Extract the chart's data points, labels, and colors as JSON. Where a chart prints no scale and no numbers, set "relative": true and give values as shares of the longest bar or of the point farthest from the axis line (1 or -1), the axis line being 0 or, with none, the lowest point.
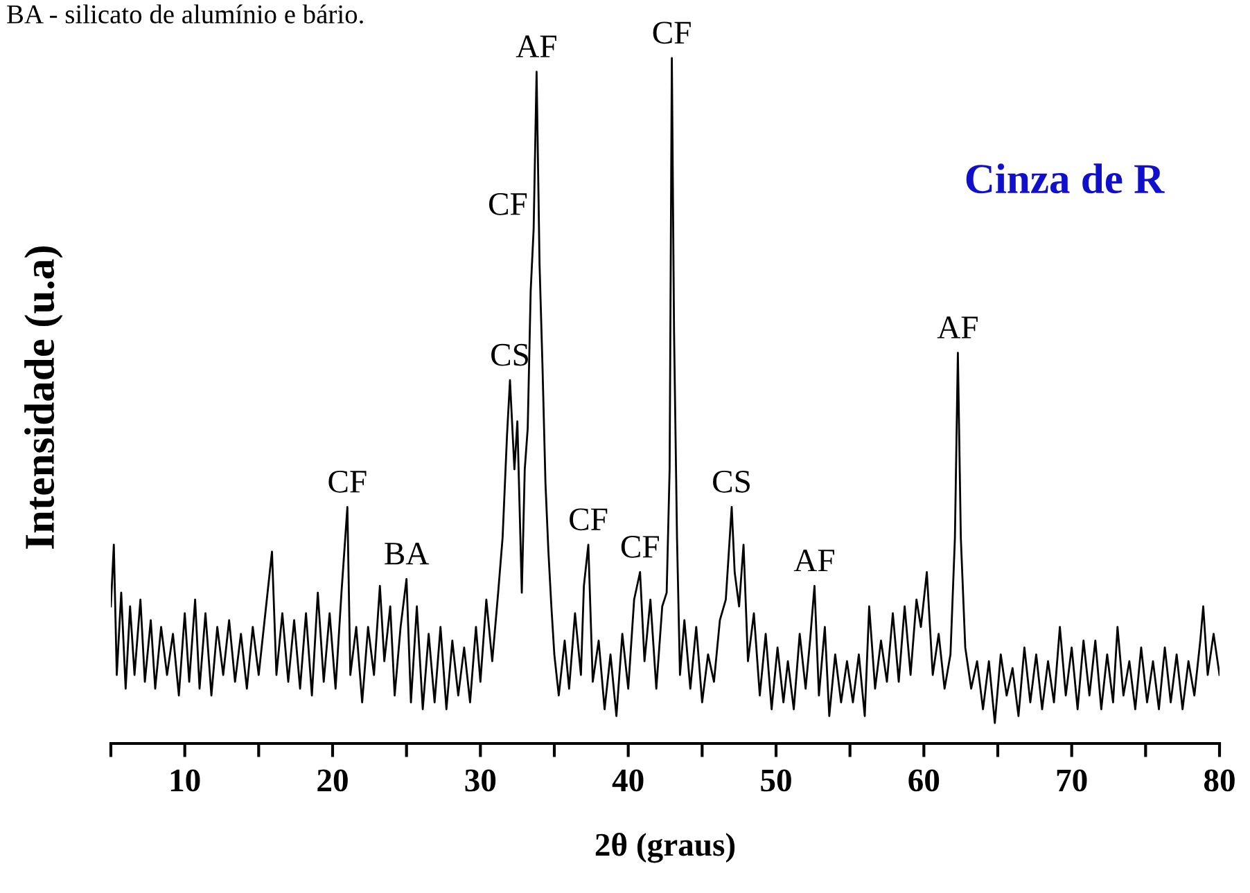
{
  "chart_data": {
    "type": "line",
    "relative": true,
    "xlabel": "2θ (graus)",
    "ylabel": "Intensidade (u.a)",
    "xlim": [
      5,
      80
    ],
    "xticks": [
      {
        "value": 5,
        "label": null
      },
      10,
      {
        "value": 15,
        "label": null
      },
      20,
      {
        "value": 25,
        "label": null
      },
      30,
      {
        "value": 35,
        "label": null
      },
      40,
      {
        "value": 45,
        "label": null
      },
      50,
      {
        "value": 55,
        "label": null
      },
      60,
      {
        "value": 65,
        "label": null
      },
      70,
      {
        "value": 75,
        "label": null
      },
      80
    ],
    "tick_labels": "x",
    "grid": false,
    "legend": false,
    "marker": "none",
    "line_style": "solid",
    "series": [
      {
        "color": "#000000",
        "x": [
          5.0,
          5.2,
          5.4,
          5.7,
          6.0,
          6.3,
          6.6,
          7.0,
          7.3,
          7.7,
          8.0,
          8.4,
          8.8,
          9.2,
          9.6,
          10.0,
          10.3,
          10.7,
          11.0,
          11.4,
          11.8,
          12.2,
          12.6,
          13.0,
          13.4,
          13.8,
          14.2,
          14.6,
          15.0,
          15.5,
          15.9,
          16.2,
          16.6,
          17.0,
          17.4,
          17.8,
          18.2,
          18.6,
          19.0,
          19.4,
          19.8,
          20.2,
          20.6,
          21.0,
          21.2,
          21.6,
          22.0,
          22.4,
          22.8,
          23.2,
          23.5,
          23.9,
          24.2,
          24.6,
          25.0,
          25.3,
          25.7,
          26.1,
          26.5,
          26.9,
          27.3,
          27.7,
          28.1,
          28.5,
          28.9,
          29.3,
          29.7,
          30.0,
          30.4,
          30.8,
          31.2,
          31.5,
          31.8,
          32.0,
          32.3,
          32.5,
          32.8,
          33.0,
          33.2,
          33.4,
          33.6,
          33.8,
          34.0,
          34.2,
          34.4,
          34.6,
          34.8,
          35.0,
          35.3,
          35.7,
          36.0,
          36.4,
          36.8,
          37.0,
          37.3,
          37.6,
          38.0,
          38.4,
          38.8,
          39.2,
          39.6,
          40.0,
          40.4,
          40.8,
          41.1,
          41.5,
          41.9,
          42.3,
          42.6,
          42.8,
          42.95,
          43.1,
          43.3,
          43.5,
          43.8,
          44.2,
          44.6,
          45.0,
          45.4,
          45.8,
          46.2,
          46.6,
          47.0,
          47.2,
          47.5,
          47.8,
          48.1,
          48.5,
          48.9,
          49.3,
          49.7,
          50.1,
          50.5,
          50.8,
          51.2,
          51.6,
          52.0,
          52.3,
          52.6,
          52.9,
          53.3,
          53.6,
          54.0,
          54.4,
          54.8,
          55.2,
          55.6,
          56.0,
          56.3,
          56.7,
          57.1,
          57.5,
          57.9,
          58.3,
          58.7,
          59.1,
          59.5,
          59.8,
          60.2,
          60.6,
          61.0,
          61.4,
          61.8,
          62.1,
          62.3,
          62.5,
          62.8,
          63.2,
          63.6,
          64.0,
          64.4,
          64.8,
          65.2,
          65.6,
          66.0,
          66.4,
          66.8,
          67.2,
          67.6,
          68.0,
          68.4,
          68.8,
          69.2,
          69.6,
          70.0,
          70.4,
          70.8,
          71.2,
          71.6,
          72.0,
          72.4,
          72.8,
          73.1,
          73.5,
          73.9,
          74.3,
          74.7,
          75.1,
          75.5,
          75.9,
          76.3,
          76.7,
          77.1,
          77.5,
          77.9,
          78.3,
          78.7,
          78.9,
          79.2,
          79.6,
          80.0
        ],
        "values": [
          0.2,
          0.29,
          0.1,
          0.22,
          0.08,
          0.2,
          0.1,
          0.21,
          0.09,
          0.18,
          0.08,
          0.17,
          0.1,
          0.16,
          0.07,
          0.19,
          0.09,
          0.21,
          0.08,
          0.19,
          0.07,
          0.17,
          0.1,
          0.18,
          0.09,
          0.16,
          0.08,
          0.17,
          0.1,
          0.2,
          0.28,
          0.1,
          0.19,
          0.09,
          0.18,
          0.08,
          0.19,
          0.07,
          0.22,
          0.09,
          0.19,
          0.08,
          0.22,
          0.345,
          0.1,
          0.17,
          0.06,
          0.17,
          0.1,
          0.23,
          0.12,
          0.2,
          0.07,
          0.17,
          0.24,
          0.06,
          0.2,
          0.05,
          0.16,
          0.06,
          0.17,
          0.05,
          0.15,
          0.07,
          0.14,
          0.06,
          0.17,
          0.09,
          0.21,
          0.12,
          0.22,
          0.3,
          0.45,
          0.53,
          0.4,
          0.47,
          0.22,
          0.4,
          0.46,
          0.66,
          0.75,
          0.98,
          0.7,
          0.55,
          0.38,
          0.28,
          0.2,
          0.13,
          0.07,
          0.15,
          0.08,
          0.19,
          0.1,
          0.23,
          0.29,
          0.09,
          0.15,
          0.05,
          0.13,
          0.04,
          0.16,
          0.08,
          0.21,
          0.25,
          0.12,
          0.21,
          0.08,
          0.2,
          0.22,
          0.4,
          1.0,
          0.6,
          0.3,
          0.1,
          0.18,
          0.08,
          0.17,
          0.06,
          0.13,
          0.09,
          0.18,
          0.21,
          0.345,
          0.25,
          0.2,
          0.29,
          0.12,
          0.19,
          0.07,
          0.16,
          0.05,
          0.14,
          0.06,
          0.12,
          0.05,
          0.16,
          0.08,
          0.15,
          0.23,
          0.07,
          0.17,
          0.04,
          0.13,
          0.06,
          0.12,
          0.06,
          0.13,
          0.04,
          0.2,
          0.08,
          0.15,
          0.09,
          0.19,
          0.09,
          0.2,
          0.1,
          0.21,
          0.17,
          0.25,
          0.1,
          0.16,
          0.08,
          0.13,
          0.3,
          0.57,
          0.3,
          0.14,
          0.08,
          0.12,
          0.05,
          0.12,
          0.03,
          0.13,
          0.07,
          0.11,
          0.04,
          0.14,
          0.06,
          0.13,
          0.05,
          0.12,
          0.06,
          0.17,
          0.07,
          0.14,
          0.05,
          0.15,
          0.07,
          0.15,
          0.05,
          0.13,
          0.06,
          0.17,
          0.07,
          0.12,
          0.05,
          0.14,
          0.06,
          0.12,
          0.05,
          0.14,
          0.06,
          0.13,
          0.05,
          0.12,
          0.07,
          0.15,
          0.2,
          0.1,
          0.16,
          0.1
        ]
      }
    ],
    "annotations": [
      "BA - silicato de alumínio e bário.",
      "Cinza de R",
      {
        "text": "CF",
        "x": 21.0,
        "y": 0.345
      },
      {
        "text": "BA",
        "x": 25.0,
        "y": 0.24
      },
      {
        "text": "CS",
        "x": 32.0,
        "y": 0.53
      },
      {
        "text": "CF",
        "x": 33.6,
        "y": 0.75
      },
      {
        "text": "AF",
        "x": 33.8,
        "y": 0.98
      },
      {
        "text": "CF",
        "x": 37.3,
        "y": 0.29
      },
      {
        "text": "CF",
        "x": 40.8,
        "y": 0.25
      },
      {
        "text": "CF",
        "x": 42.95,
        "y": 1.0
      },
      {
        "text": "CS",
        "x": 47.0,
        "y": 0.345
      },
      {
        "text": "AF",
        "x": 52.6,
        "y": 0.23
      },
      {
        "text": "AF",
        "x": 62.3,
        "y": 0.57
      }
    ]
  }
}
